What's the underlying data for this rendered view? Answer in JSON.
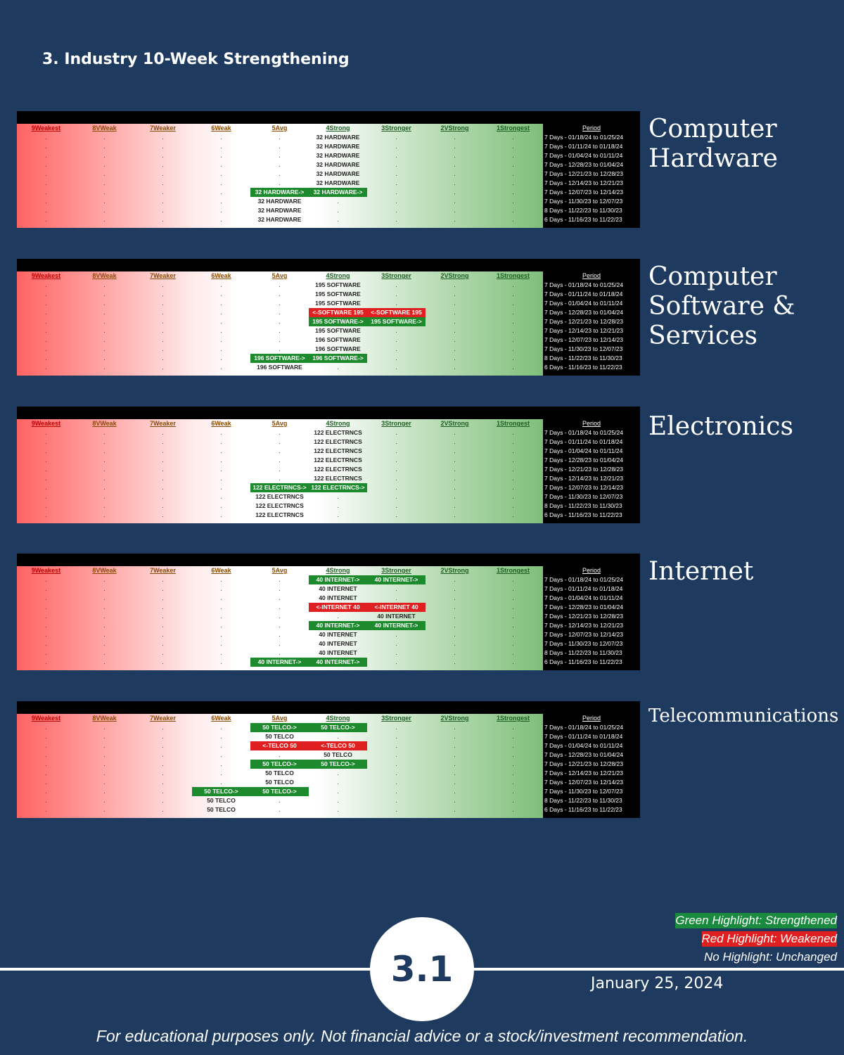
{
  "page_title": "3. Industry 10-Week Strengthening",
  "columns": [
    "9Weakest",
    "8VWeak",
    "7Weaker",
    "6Weak",
    "5Avg",
    "4Strong",
    "3Stronger",
    "2VStrong",
    "1Strongest"
  ],
  "period_header": "Period",
  "periods": [
    "7 Days - 01/18/24 to 01/25/24",
    "7 Days - 01/11/24 to 01/18/24",
    "7 Days - 01/04/24 to 01/11/24",
    "7 Days - 12/28/23 to 01/04/24",
    "7 Days - 12/21/23 to 12/28/23",
    "7 Days - 12/14/23 to 12/21/23",
    "7 Days - 12/07/23 to 12/14/23",
    "7 Days - 11/30/23 to 12/07/23",
    "8 Days - 11/22/23 to 11/30/23",
    "6 Days - 11/16/23 to 11/22/23"
  ],
  "panels": [
    {
      "label_lines": [
        "Computer",
        "Hardware"
      ],
      "rows": [
        [
          [
            5,
            "32 HARDWARE",
            ""
          ]
        ],
        [
          [
            5,
            "32 HARDWARE",
            ""
          ]
        ],
        [
          [
            5,
            "32 HARDWARE",
            ""
          ]
        ],
        [
          [
            5,
            "32 HARDWARE",
            ""
          ]
        ],
        [
          [
            5,
            "32 HARDWARE",
            ""
          ]
        ],
        [
          [
            5,
            "32 HARDWARE",
            ""
          ]
        ],
        [
          [
            4,
            "32 HARDWARE->",
            "green"
          ],
          [
            5,
            "32 HARDWARE->",
            "green"
          ]
        ],
        [
          [
            4,
            "32 HARDWARE",
            ""
          ]
        ],
        [
          [
            4,
            "32 HARDWARE",
            ""
          ]
        ],
        [
          [
            4,
            "32 HARDWARE",
            ""
          ]
        ]
      ]
    },
    {
      "label_lines": [
        "Computer",
        "Software &",
        "Services"
      ],
      "rows": [
        [
          [
            5,
            "195 SOFTWARE",
            ""
          ]
        ],
        [
          [
            5,
            "195 SOFTWARE",
            ""
          ]
        ],
        [
          [
            5,
            "195 SOFTWARE",
            ""
          ]
        ],
        [
          [
            5,
            "<-SOFTWARE 195",
            "red"
          ],
          [
            6,
            "<-SOFTWARE 195",
            "red"
          ]
        ],
        [
          [
            5,
            "195 SOFTWARE->",
            "green"
          ],
          [
            6,
            "195 SOFTWARE->",
            "green"
          ]
        ],
        [
          [
            5,
            "195 SOFTWARE",
            ""
          ]
        ],
        [
          [
            5,
            "196 SOFTWARE",
            ""
          ]
        ],
        [
          [
            5,
            "196 SOFTWARE",
            ""
          ]
        ],
        [
          [
            4,
            "196 SOFTWARE->",
            "green"
          ],
          [
            5,
            "196 SOFTWARE->",
            "green"
          ]
        ],
        [
          [
            4,
            "196 SOFTWARE",
            ""
          ]
        ]
      ]
    },
    {
      "label_lines": [
        "Electronics"
      ],
      "rows": [
        [
          [
            5,
            "122 ELECTRNCS",
            ""
          ]
        ],
        [
          [
            5,
            "122 ELECTRNCS",
            ""
          ]
        ],
        [
          [
            5,
            "122 ELECTRNCS",
            ""
          ]
        ],
        [
          [
            5,
            "122 ELECTRNCS",
            ""
          ]
        ],
        [
          [
            5,
            "122 ELECTRNCS",
            ""
          ]
        ],
        [
          [
            5,
            "122 ELECTRNCS",
            ""
          ]
        ],
        [
          [
            4,
            "122 ELECTRNCS->",
            "green"
          ],
          [
            5,
            "122 ELECTRNCS->",
            "green"
          ]
        ],
        [
          [
            4,
            "122 ELECTRNCS",
            ""
          ]
        ],
        [
          [
            4,
            "122 ELECTRNCS",
            ""
          ]
        ],
        [
          [
            4,
            "122 ELECTRNCS",
            ""
          ]
        ]
      ]
    },
    {
      "label_lines": [
        "Internet"
      ],
      "rows": [
        [
          [
            5,
            "40 INTERNET->",
            "green"
          ],
          [
            6,
            "40 INTERNET->",
            "green"
          ]
        ],
        [
          [
            5,
            "40 INTERNET",
            ""
          ]
        ],
        [
          [
            5,
            "40 INTERNET",
            ""
          ]
        ],
        [
          [
            5,
            "<-INTERNET 40",
            "red"
          ],
          [
            6,
            "<-INTERNET 40",
            "red"
          ]
        ],
        [
          [
            6,
            "40 INTERNET",
            ""
          ]
        ],
        [
          [
            5,
            "40 INTERNET->",
            "green"
          ],
          [
            6,
            "40 INTERNET->",
            "green"
          ]
        ],
        [
          [
            5,
            "40 INTERNET",
            ""
          ]
        ],
        [
          [
            5,
            "40 INTERNET",
            ""
          ]
        ],
        [
          [
            5,
            "40 INTERNET",
            ""
          ]
        ],
        [
          [
            4,
            "40 INTERNET->",
            "green"
          ],
          [
            5,
            "40 INTERNET->",
            "green"
          ]
        ]
      ]
    },
    {
      "label_lines": [
        "Telecommunications"
      ],
      "small": true,
      "rows": [
        [
          [
            4,
            "50 TELCO->",
            "green"
          ],
          [
            5,
            "50 TELCO->",
            "green"
          ]
        ],
        [
          [
            4,
            "50 TELCO",
            ""
          ]
        ],
        [
          [
            4,
            "<-TELCO 50",
            "red"
          ],
          [
            5,
            "<-TELCO 50",
            "red"
          ]
        ],
        [
          [
            5,
            "50 TELCO",
            ""
          ]
        ],
        [
          [
            4,
            "50 TELCO->",
            "green"
          ],
          [
            5,
            "50 TELCO->",
            "green"
          ]
        ],
        [
          [
            4,
            "50 TELCO",
            ""
          ]
        ],
        [
          [
            4,
            "50 TELCO",
            ""
          ]
        ],
        [
          [
            3,
            "50 TELCO->",
            "green"
          ],
          [
            4,
            "50 TELCO->",
            "green"
          ]
        ],
        [
          [
            3,
            "50 TELCO",
            ""
          ]
        ],
        [
          [
            3,
            "50 TELCO",
            ""
          ]
        ]
      ]
    }
  ],
  "legend": {
    "green": "Green Highlight: Strengthened",
    "red": "Red Highlight: Weakened",
    "none": "No Highlight: Unchanged"
  },
  "page_number": "3.1",
  "date": "January 25, 2024",
  "disclaimer": "For educational purposes only. Not financial advice or a stock/investment recommendation."
}
